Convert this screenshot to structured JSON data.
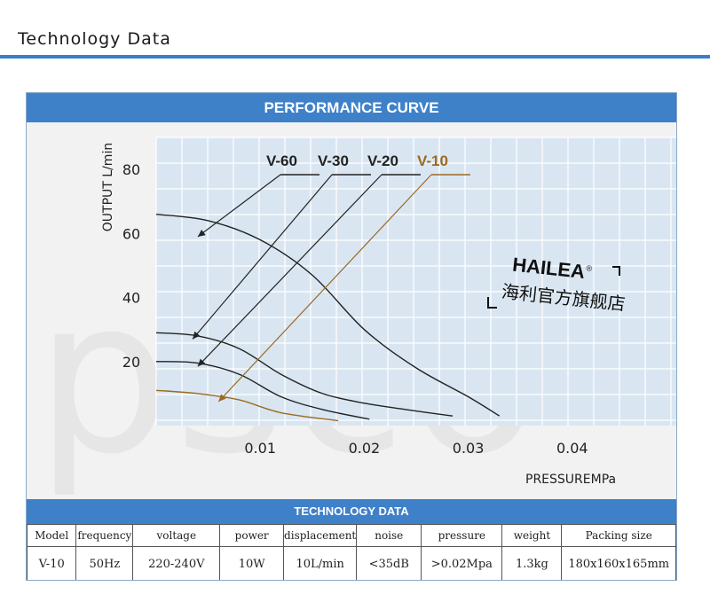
{
  "page": {
    "title": "Technology Data"
  },
  "panel": {
    "title": "PERFORMANCE CURVE"
  },
  "watermark": {
    "text": "psco"
  },
  "brand": {
    "name": "HAILEA",
    "registered": "®",
    "chinese": "海利官方旗舰店"
  },
  "chart_data": {
    "type": "line",
    "xlabel": "PRESSUREMPa",
    "ylabel": "OUTPUT L/min",
    "xlim": [
      0,
      0.05
    ],
    "ylim": [
      0,
      90
    ],
    "xticks": [
      "0.01",
      "0.02",
      "0.03",
      "0.04"
    ],
    "xtick_values": [
      0.01,
      0.02,
      0.03,
      0.04
    ],
    "yticks": [
      "20",
      "40",
      "60",
      "80"
    ],
    "ytick_values": [
      20,
      40,
      60,
      80
    ],
    "grid": true,
    "legend_placement": "top",
    "series": [
      {
        "name": "V-60",
        "color": "#222222",
        "x": [
          0.0,
          0.005,
          0.01,
          0.015,
          0.02,
          0.025,
          0.03,
          0.033
        ],
        "y": [
          66,
          64,
          58,
          47,
          30,
          18,
          9,
          3
        ]
      },
      {
        "name": "V-30",
        "color": "#222222",
        "x": [
          0.0,
          0.004,
          0.008,
          0.012,
          0.016,
          0.02,
          0.024,
          0.0285
        ],
        "y": [
          29,
          28,
          24,
          16,
          10,
          7,
          5,
          3
        ]
      },
      {
        "name": "V-20",
        "color": "#222222",
        "x": [
          0.0,
          0.004,
          0.008,
          0.012,
          0.016,
          0.0205
        ],
        "y": [
          20,
          19.5,
          16,
          9,
          5,
          2
        ]
      },
      {
        "name": "V-10",
        "color": "#9a6a22",
        "x": [
          0.0,
          0.004,
          0.008,
          0.012,
          0.0175
        ],
        "y": [
          11,
          10,
          8,
          4,
          1.5
        ]
      }
    ]
  },
  "spec_table": {
    "title": "TECHNOLOGY DATA",
    "headers": [
      "Model",
      "frequency",
      "voltage",
      "power",
      "displacement",
      "noise",
      "pressure",
      "weight",
      "Packing size"
    ],
    "row": [
      "V-10",
      "50Hz",
      "220-240V",
      "10W",
      "10L/min",
      "<35dB",
      ">0.02Mpa",
      "1.3kg",
      "180x160x165mm"
    ]
  },
  "colors": {
    "accent": "#3f81c9",
    "plot_bg": "#d9e6f2",
    "v10": "#9a6a22"
  }
}
